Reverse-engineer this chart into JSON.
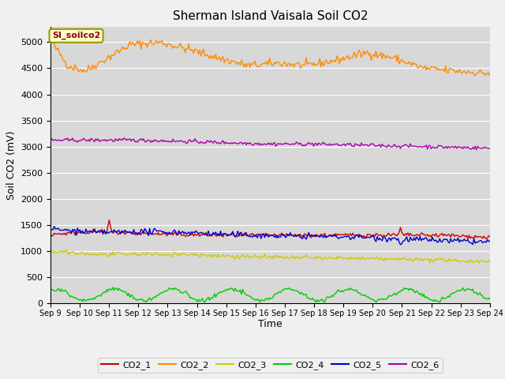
{
  "title": "Sherman Island Vaisala Soil CO2",
  "ylabel": "Soil CO2 (mV)",
  "xlabel": "Time",
  "annotation_label": "SI_soilco2",
  "ylim": [
    0,
    5300
  ],
  "yticks": [
    0,
    500,
    1000,
    1500,
    2000,
    2500,
    3000,
    3500,
    4000,
    4500,
    5000
  ],
  "legend_entries": [
    "CO2_1",
    "CO2_2",
    "CO2_3",
    "CO2_4",
    "CO2_5",
    "CO2_6"
  ],
  "legend_colors": [
    "#cc0000",
    "#ff8c00",
    "#cccc00",
    "#00cc00",
    "#0000cc",
    "#aa00aa"
  ],
  "background_color": "#d8d8d8",
  "fig_facecolor": "#f0f0f0",
  "xtick_labels": [
    "Sep 9",
    "Sep 10",
    "Sep 11",
    "Sep 12",
    "Sep 13",
    "Sep 14",
    "Sep 15",
    "Sep 16",
    "Sep 17",
    "Sep 18",
    "Sep 19",
    "Sep 20",
    "Sep 21",
    "Sep 22",
    "Sep 23",
    "Sep 24"
  ]
}
